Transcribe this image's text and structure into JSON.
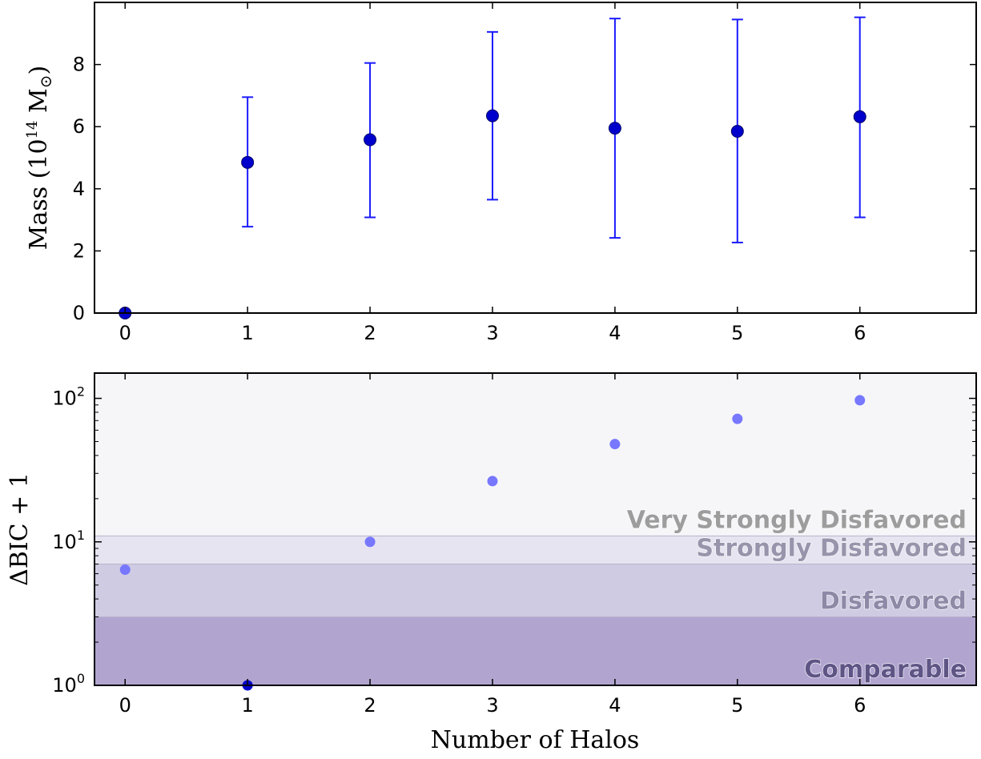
{
  "chart_data": [
    {
      "type": "scatter",
      "xlabel": "",
      "ylabel": "Mass (10¹⁴ M⊙)",
      "ylabel_parts": {
        "prefix": "Mass (10",
        "exp": "14",
        "unit": " M",
        "sun": "⊙",
        "close": ")"
      },
      "xlim": [
        -0.25,
        6.95
      ],
      "ylim": [
        0,
        10
      ],
      "x_ticks": [
        "0",
        "1",
        "2",
        "3",
        "4",
        "5",
        "6"
      ],
      "y_ticks": [
        "0",
        "2",
        "4",
        "6",
        "8"
      ],
      "x_tick_values": [
        0,
        1,
        2,
        3,
        4,
        5,
        6
      ],
      "y_tick_values": [
        0,
        2,
        4,
        6,
        8
      ],
      "points": [
        {
          "x": 0,
          "y": 0.0
        },
        {
          "x": 1,
          "y": 4.85,
          "lo": 2.78,
          "hi": 6.95
        },
        {
          "x": 2,
          "y": 5.58,
          "lo": 3.08,
          "hi": 8.05
        },
        {
          "x": 3,
          "y": 6.35,
          "lo": 3.65,
          "hi": 9.05
        },
        {
          "x": 4,
          "y": 5.95,
          "lo": 2.42,
          "hi": 9.48
        },
        {
          "x": 5,
          "y": 5.85,
          "lo": 2.27,
          "hi": 9.45
        },
        {
          "x": 6,
          "y": 6.32,
          "lo": 3.08,
          "hi": 9.52
        }
      ],
      "color": "#0000cc",
      "errorbar_color": "#1a1aff",
      "grid": false
    },
    {
      "type": "scatter",
      "xlabel": "Number of Halos",
      "ylabel": "ΔBIC + 1",
      "xlim": [
        -0.25,
        6.95
      ],
      "ylim": [
        1,
        150
      ],
      "yscale": "log",
      "x_ticks": [
        "0",
        "1",
        "2",
        "3",
        "4",
        "5",
        "6"
      ],
      "x_tick_values": [
        0,
        1,
        2,
        3,
        4,
        5,
        6
      ],
      "y_ticks": [
        {
          "base": "10",
          "exp": "0",
          "value": 1
        },
        {
          "base": "10",
          "exp": "1",
          "value": 10
        },
        {
          "base": "10",
          "exp": "2",
          "value": 100
        }
      ],
      "points": [
        {
          "x": 0,
          "y": 6.4
        },
        {
          "x": 1,
          "y": 1.0
        },
        {
          "x": 2,
          "y": 10.0
        },
        {
          "x": 3,
          "y": 26.5
        },
        {
          "x": 4,
          "y": 48.0
        },
        {
          "x": 5,
          "y": 72.0
        },
        {
          "x": 6,
          "y": 97.0
        }
      ],
      "point_colors": [
        "#7777ff",
        "#0000cc",
        "#7777ff",
        "#7777ff",
        "#7777ff",
        "#7777ff",
        "#7777ff"
      ],
      "bands": [
        {
          "label": "Comparable",
          "from": 1,
          "to": 3,
          "fill": "#b1a5d0",
          "text": "#5f5585"
        },
        {
          "label": "Disfavored",
          "from": 3,
          "to": 7,
          "fill": "#cfcbe3",
          "text": "#8e89a6"
        },
        {
          "label": "Strongly Disfavored",
          "from": 7,
          "to": 11,
          "fill": "#e6e4f0",
          "text": "#9894ab"
        },
        {
          "label": "Very Strongly Disfavored",
          "from": 11,
          "to": 150,
          "fill": "#f6f6f9",
          "text": "#9d9d9d"
        }
      ],
      "grid": false
    }
  ]
}
